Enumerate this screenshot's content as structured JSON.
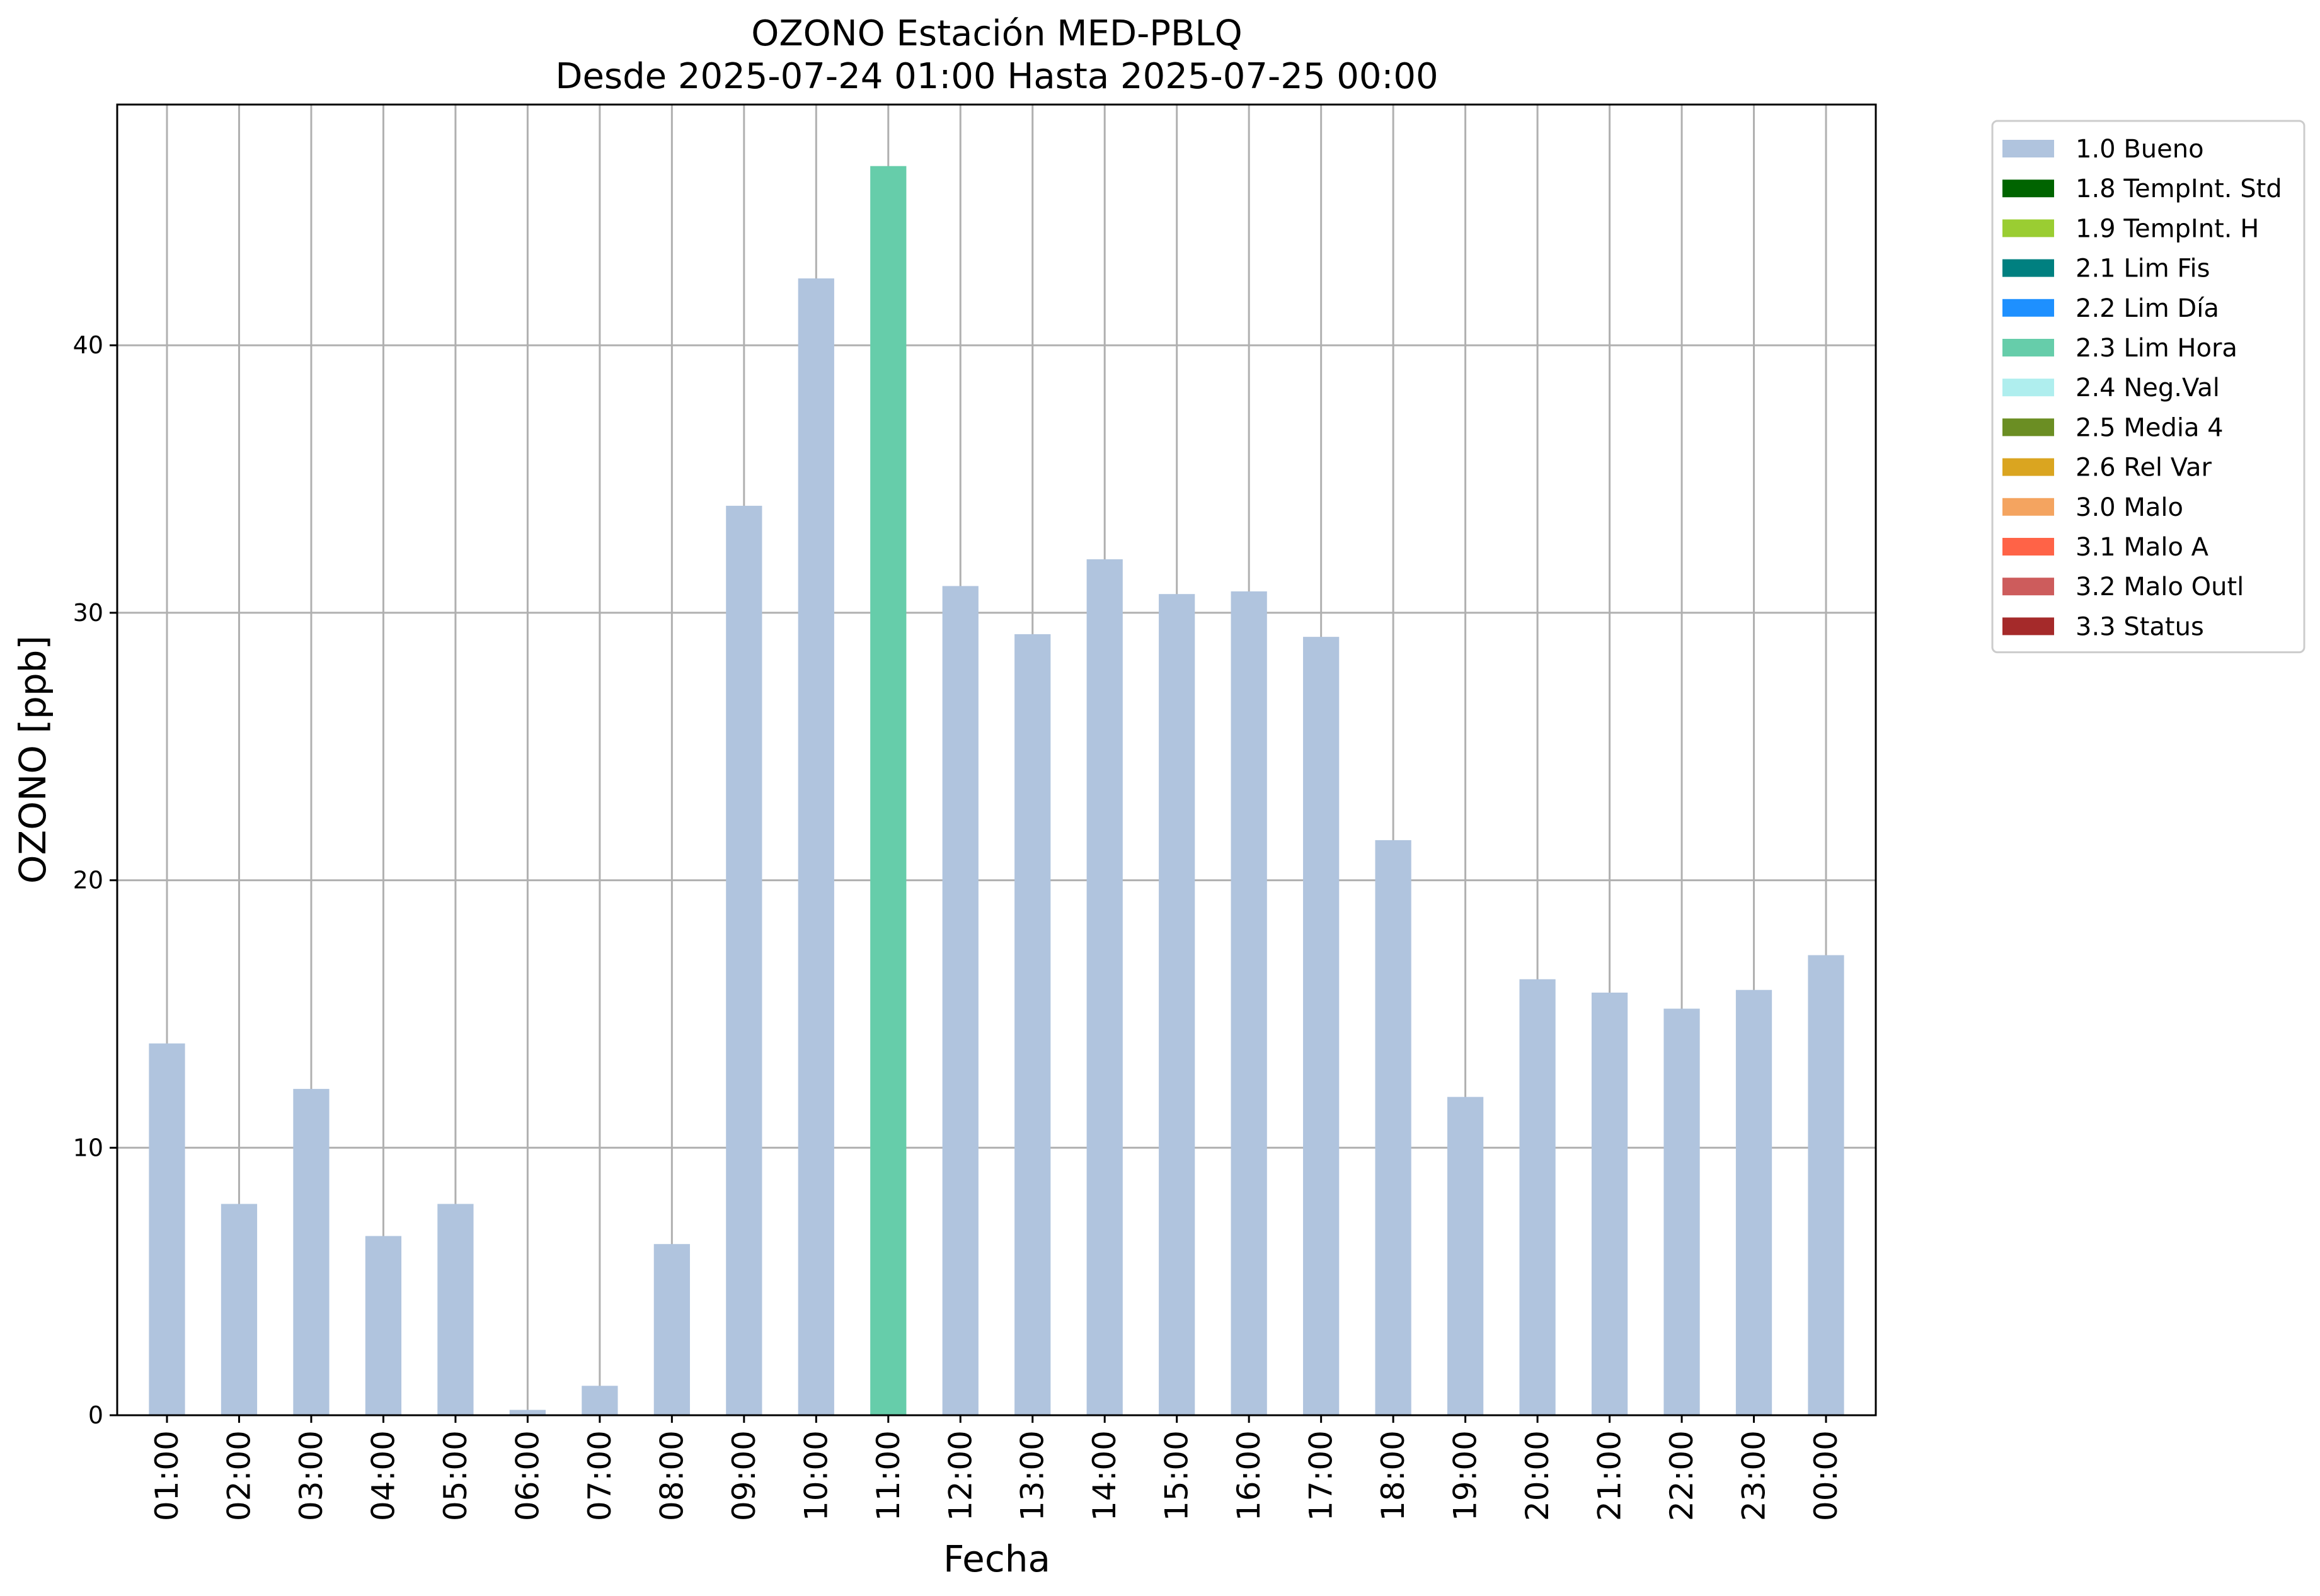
{
  "chart_data": {
    "type": "bar",
    "title": "OZONO Estación MED-PBLQ",
    "subtitle": "Desde 2025-07-24 01:00 Hasta 2025-07-25 00:00",
    "xlabel": "Fecha",
    "ylabel": "OZONO [ppb]",
    "ylim": [
      0,
      49
    ],
    "yticks": [
      0,
      10,
      20,
      30,
      40
    ],
    "grid": true,
    "legend_position": "outside-top-right",
    "categories": [
      "01:00",
      "02:00",
      "03:00",
      "04:00",
      "05:00",
      "06:00",
      "07:00",
      "08:00",
      "09:00",
      "10:00",
      "11:00",
      "12:00",
      "13:00",
      "14:00",
      "15:00",
      "16:00",
      "17:00",
      "18:00",
      "19:00",
      "20:00",
      "21:00",
      "22:00",
      "23:00",
      "00:00"
    ],
    "values": [
      13.9,
      7.9,
      12.2,
      6.7,
      7.9,
      0.2,
      1.1,
      6.4,
      34.0,
      42.5,
      46.7,
      31.0,
      29.2,
      32.0,
      30.7,
      30.8,
      29.1,
      21.5,
      11.9,
      16.3,
      15.8,
      15.2,
      15.9,
      17.2
    ],
    "flags": [
      "1.0 Bueno",
      "1.0 Bueno",
      "1.0 Bueno",
      "1.0 Bueno",
      "1.0 Bueno",
      "1.0 Bueno",
      "1.0 Bueno",
      "1.0 Bueno",
      "1.0 Bueno",
      "1.0 Bueno",
      "2.3 Lim Hora",
      "1.0 Bueno",
      "1.0 Bueno",
      "1.0 Bueno",
      "1.0 Bueno",
      "1.0 Bueno",
      "1.0 Bueno",
      "1.0 Bueno",
      "1.0 Bueno",
      "1.0 Bueno",
      "1.0 Bueno",
      "1.0 Bueno",
      "1.0 Bueno",
      "1.0 Bueno"
    ],
    "legend": [
      {
        "label": "1.0 Bueno",
        "color": "#b0c4de"
      },
      {
        "label": "1.8 TempInt. Std",
        "color": "#006400"
      },
      {
        "label": "1.9 TempInt. H",
        "color": "#9acd32"
      },
      {
        "label": "2.1 Lim Fis",
        "color": "#008080"
      },
      {
        "label": "2.2 Lim Día",
        "color": "#1e90ff"
      },
      {
        "label": "2.3 Lim Hora",
        "color": "#66cdaa"
      },
      {
        "label": "2.4 Neg.Val",
        "color": "#afeeee"
      },
      {
        "label": "2.5 Media 4",
        "color": "#6b8e23"
      },
      {
        "label": "2.6 Rel Var",
        "color": "#daa520"
      },
      {
        "label": "3.0 Malo",
        "color": "#f4a460"
      },
      {
        "label": "3.1 Malo A",
        "color": "#ff6347"
      },
      {
        "label": "3.2 Malo Outl",
        "color": "#cd5c5c"
      },
      {
        "label": "3.3 Status",
        "color": "#a52a2a"
      }
    ]
  }
}
